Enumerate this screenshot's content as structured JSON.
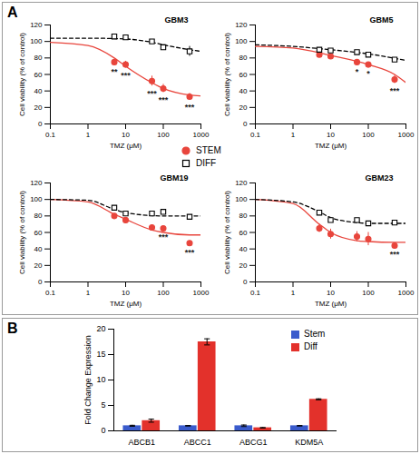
{
  "chart_data": [
    {
      "panel": "A",
      "type": "scatter",
      "title": "GBM3",
      "x_label": "TMZ (μM)",
      "y_label": "Cell viability (% of control)",
      "log": "x",
      "xlim": [
        0.1,
        1000
      ],
      "xticks": [
        0.1,
        1,
        10,
        100,
        1000
      ],
      "ylim": [
        0,
        120
      ],
      "yticks": [
        0,
        20,
        40,
        60,
        80,
        100,
        120
      ],
      "legend": "center",
      "x": [
        5,
        10,
        50,
        100,
        500
      ],
      "series": [
        {
          "name": "STEM",
          "color": "#e8453c",
          "marker": "circle",
          "line_style": "solid",
          "values": [
            75,
            72,
            52,
            43,
            33
          ],
          "errors": [
            3,
            4,
            6,
            5,
            4
          ],
          "significance": [
            "**",
            "***",
            "***",
            "***",
            "***"
          ],
          "fit_x": [
            0.1,
            1,
            5,
            10,
            50,
            100,
            500,
            1000
          ],
          "fit_values": [
            99,
            95,
            80,
            70,
            50,
            43,
            35,
            34
          ]
        },
        {
          "name": "DIFF",
          "color": "#000000",
          "marker": "open_square",
          "line_style": "dashed",
          "values": [
            106,
            105,
            100,
            93,
            88
          ],
          "errors": [
            2,
            2,
            2,
            3,
            6
          ],
          "fit_x": [
            0.1,
            1,
            10,
            50,
            100,
            500,
            1000
          ],
          "fit_values": [
            104,
            104,
            103,
            99,
            96,
            90,
            88
          ]
        }
      ]
    },
    {
      "panel": "A",
      "type": "scatter",
      "title": "GBM5",
      "x_label": "TMZ (μM)",
      "y_label": "Cell viability (% of control)",
      "log": "x",
      "xlim": [
        0.1,
        1000
      ],
      "xticks": [
        0.1,
        1,
        10,
        100,
        1000
      ],
      "ylim": [
        0,
        120
      ],
      "yticks": [
        0,
        20,
        40,
        60,
        80,
        100,
        120
      ],
      "x": [
        5,
        10,
        50,
        100,
        500
      ],
      "series": [
        {
          "name": "STEM",
          "color": "#e8453c",
          "marker": "circle",
          "line_style": "solid",
          "values": [
            84,
            82,
            75,
            72,
            54
          ],
          "errors": [
            2,
            3,
            3,
            2,
            5
          ],
          "significance": [
            null,
            null,
            "*",
            "*",
            "***"
          ],
          "fit_x": [
            0.1,
            1,
            10,
            100,
            500,
            1000
          ],
          "fit_values": [
            94,
            92,
            83,
            72,
            60,
            50
          ]
        },
        {
          "name": "DIFF",
          "color": "#000000",
          "marker": "open_square",
          "line_style": "dashed",
          "values": [
            90,
            89,
            87,
            84,
            78
          ],
          "errors": [
            1,
            1,
            1,
            1,
            1
          ],
          "fit_x": [
            0.1,
            1,
            10,
            100,
            1000
          ],
          "fit_values": [
            96,
            94,
            90,
            85,
            77
          ]
        }
      ]
    },
    {
      "panel": "A",
      "type": "scatter",
      "title": "GBM19",
      "x_label": "TMZ (μM)",
      "y_label": "Cell viability (% of control)",
      "log": "x",
      "xlim": [
        0.1,
        1000
      ],
      "xticks": [
        0.1,
        1,
        10,
        100,
        1000
      ],
      "ylim": [
        0,
        120
      ],
      "yticks": [
        0,
        20,
        40,
        60,
        80,
        100,
        120
      ],
      "x": [
        5,
        10,
        50,
        100,
        500
      ],
      "series": [
        {
          "name": "STEM",
          "color": "#e8453c",
          "marker": "circle",
          "line_style": "solid",
          "values": [
            80,
            75,
            66,
            65,
            47
          ],
          "errors": [
            2,
            2,
            3,
            2,
            2
          ],
          "significance": [
            null,
            null,
            null,
            "***",
            "***"
          ],
          "fit_x": [
            0.1,
            1,
            5,
            10,
            50,
            100,
            500,
            1000
          ],
          "fit_values": [
            100,
            97,
            82,
            76,
            63,
            60,
            57,
            57
          ]
        },
        {
          "name": "DIFF",
          "color": "#000000",
          "marker": "open_square",
          "line_style": "dashed",
          "values": [
            90,
            83,
            83,
            85,
            79
          ],
          "errors": [
            2,
            2,
            2,
            3,
            1
          ],
          "fit_x": [
            0.1,
            1,
            5,
            10,
            100,
            1000
          ],
          "fit_values": [
            100,
            99,
            88,
            84,
            80,
            80
          ]
        }
      ]
    },
    {
      "panel": "A",
      "type": "scatter",
      "title": "GBM23",
      "x_label": "TMZ (μM)",
      "y_label": "Cell viability (% of control)",
      "log": "x",
      "xlim": [
        0.1,
        1000
      ],
      "xticks": [
        0.1,
        1,
        10,
        100,
        1000
      ],
      "ylim": [
        0,
        120
      ],
      "yticks": [
        0,
        20,
        40,
        60,
        80,
        100,
        120
      ],
      "x": [
        5,
        10,
        50,
        100,
        500
      ],
      "series": [
        {
          "name": "STEM",
          "color": "#e8453c",
          "marker": "circle",
          "line_style": "solid",
          "values": [
            65,
            58,
            55,
            52,
            44
          ],
          "errors": [
            5,
            6,
            6,
            8,
            2
          ],
          "significance": [
            null,
            null,
            null,
            null,
            "***"
          ],
          "fit_x": [
            0.1,
            1,
            5,
            10,
            50,
            100,
            500,
            1000
          ],
          "fit_values": [
            100,
            95,
            70,
            60,
            50,
            49,
            48,
            48
          ]
        },
        {
          "name": "DIFF",
          "color": "#000000",
          "marker": "open_square",
          "line_style": "dashed",
          "values": [
            84,
            75,
            75,
            71,
            72
          ],
          "errors": [
            1,
            2,
            2,
            2,
            2
          ],
          "fit_x": [
            0.1,
            1,
            5,
            10,
            50,
            100,
            1000
          ],
          "fit_values": [
            100,
            97,
            85,
            78,
            72,
            71,
            71
          ]
        }
      ]
    },
    {
      "panel": "B",
      "type": "bar",
      "y_label": "Fold Change Expression",
      "categories": [
        "ABCB1",
        "ABCC1",
        "ABCG1",
        "KDM5A"
      ],
      "ylim": [
        0,
        20
      ],
      "yticks": [
        0,
        5,
        10,
        15,
        20
      ],
      "legend": "top-right",
      "series": [
        {
          "name": "Stem",
          "color": "#3a5bcc",
          "values": [
            1,
            1,
            1,
            1
          ],
          "errors": [
            0.1,
            0.05,
            0.15,
            0.05
          ]
        },
        {
          "name": "Diff",
          "color": "#e3312b",
          "values": [
            2.0,
            17.5,
            0.6,
            6.2
          ],
          "errors": [
            0.3,
            0.6,
            0.05,
            0.1
          ]
        }
      ]
    }
  ]
}
